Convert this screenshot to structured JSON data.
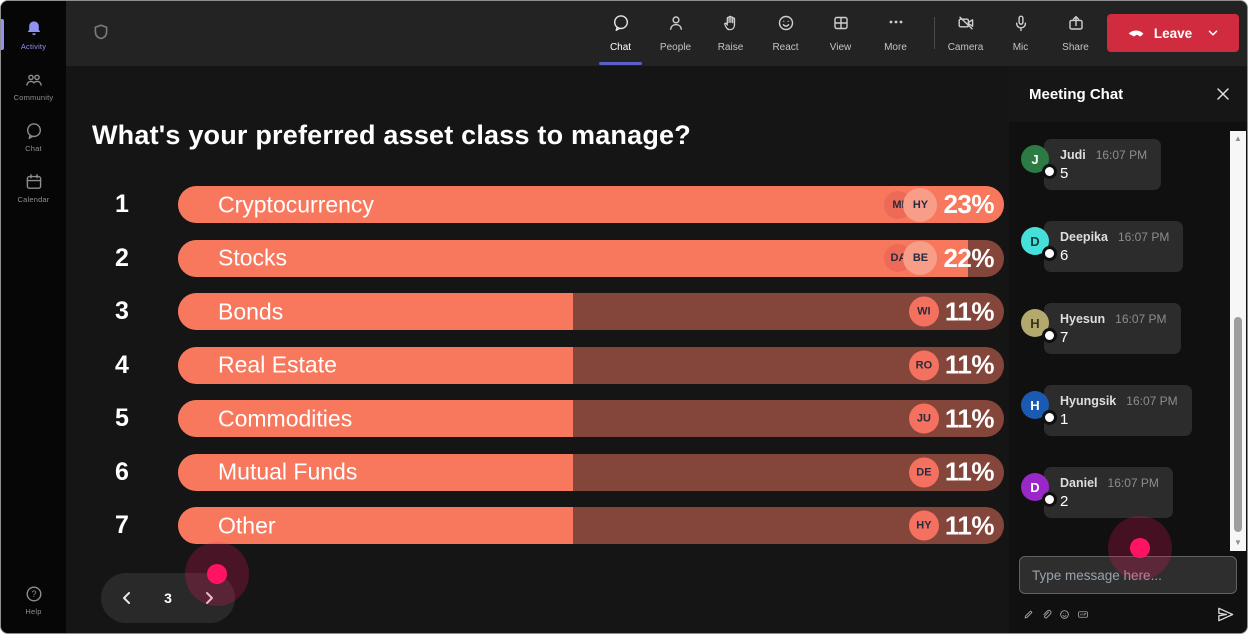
{
  "colors": {
    "bar_fill": "#f8785e",
    "bar_track": "#84453b",
    "chip_primary": "#ed6a57",
    "chip_secondary": "#f89d88",
    "chip_single": "#f4705f",
    "accent_active": "#5b5fc7",
    "leave_red": "#d02b3e",
    "cursor_pink": "#ff1464"
  },
  "sidebar": {
    "items": [
      {
        "label": "Activity",
        "icon": "bell-icon",
        "active": true
      },
      {
        "label": "Community",
        "icon": "community-icon",
        "active": false
      },
      {
        "label": "Chat",
        "icon": "chat-bubble-icon",
        "active": false
      },
      {
        "label": "Calendar",
        "icon": "calendar-icon",
        "active": false
      }
    ],
    "help_label": "Help"
  },
  "topbar": {
    "meeting_controls": [
      {
        "label": "Chat",
        "active": true
      },
      {
        "label": "People",
        "active": false
      },
      {
        "label": "Raise",
        "active": false
      },
      {
        "label": "React",
        "active": false
      },
      {
        "label": "View",
        "active": false
      },
      {
        "label": "More",
        "active": false
      }
    ],
    "device_controls": [
      {
        "label": "Camera"
      },
      {
        "label": "Mic"
      },
      {
        "label": "Share"
      }
    ],
    "leave_label": "Leave"
  },
  "poll": {
    "title": "What's your preferred asset class to manage?",
    "page": "3"
  },
  "chart_data": {
    "type": "bar",
    "orientation": "horizontal",
    "title": "What's your preferred asset class to manage?",
    "categories": [
      "Cryptocurrency",
      "Stocks",
      "Bonds",
      "Real Estate",
      "Commodities",
      "Mutual Funds",
      "Other"
    ],
    "values": [
      23,
      22,
      11,
      11,
      11,
      11,
      11
    ],
    "unit": "%",
    "xlim": [
      0,
      23
    ],
    "rows": [
      {
        "rank": "1",
        "label": "Cryptocurrency",
        "pct_label": "23%",
        "voters": [
          "MI",
          "HY"
        ]
      },
      {
        "rank": "2",
        "label": "Stocks",
        "pct_label": "22%",
        "voters": [
          "DA",
          "BE"
        ]
      },
      {
        "rank": "3",
        "label": "Bonds",
        "pct_label": "11%",
        "voters": [
          "WI"
        ]
      },
      {
        "rank": "4",
        "label": "Real Estate",
        "pct_label": "11%",
        "voters": [
          "RO"
        ]
      },
      {
        "rank": "5",
        "label": "Commodities",
        "pct_label": "11%",
        "voters": [
          "JU"
        ]
      },
      {
        "rank": "6",
        "label": "Mutual Funds",
        "pct_label": "11%",
        "voters": [
          "DE"
        ]
      },
      {
        "rank": "7",
        "label": "Other",
        "pct_label": "11%",
        "voters": [
          "HY"
        ]
      }
    ]
  },
  "chat": {
    "title": "Meeting Chat",
    "messages": [
      {
        "name": "Judi",
        "time": "16:07 PM",
        "text": "5",
        "initial": "J",
        "avatar_bg": "#2c7a44",
        "avatar_fg": "#ffffff"
      },
      {
        "name": "Deepika",
        "time": "16:07 PM",
        "text": "6",
        "initial": "D",
        "avatar_bg": "#45e0da",
        "avatar_fg": "#0f3c3a"
      },
      {
        "name": "Hyesun",
        "time": "16:07 PM",
        "text": "7",
        "initial": "H",
        "avatar_bg": "#b3a96f",
        "avatar_fg": "#3a3412"
      },
      {
        "name": "Hyungsik",
        "time": "16:07 PM",
        "text": "1",
        "initial": "H",
        "avatar_bg": "#1b5ab2",
        "avatar_fg": "#ffffff"
      },
      {
        "name": "Daniel",
        "time": "16:07 PM",
        "text": "2",
        "initial": "D",
        "avatar_bg": "#9a27c7",
        "avatar_fg": "#ffffff"
      }
    ],
    "input_placeholder": "Type message here..."
  }
}
